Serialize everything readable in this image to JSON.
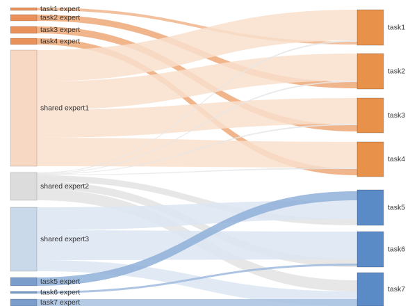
{
  "sources": [
    {
      "id": "t1e",
      "label": "task1 expert",
      "color": "#e8915a"
    },
    {
      "id": "t2e",
      "label": "task2 expert",
      "color": "#e8915a"
    },
    {
      "id": "t3e",
      "label": "task3 expert",
      "color": "#e8915a"
    },
    {
      "id": "t4e",
      "label": "task4 expert",
      "color": "#e8915a"
    },
    {
      "id": "se1",
      "label": "shared expert1",
      "color": "#f6d8c3"
    },
    {
      "id": "se2",
      "label": "shared expert2",
      "color": "#dcdcdc"
    },
    {
      "id": "se3",
      "label": "shared expert3",
      "color": "#c9d9ea"
    },
    {
      "id": "t5e",
      "label": "task5 expert",
      "color": "#7a9dcb"
    },
    {
      "id": "t6e",
      "label": "task6 expert",
      "color": "#7a9dcb"
    },
    {
      "id": "t7e",
      "label": "task7 expert",
      "color": "#7a9dcb"
    }
  ],
  "targets": [
    {
      "id": "task1",
      "label": "task1",
      "color": "#e8914b"
    },
    {
      "id": "task2",
      "label": "task2",
      "color": "#e8914b"
    },
    {
      "id": "task3",
      "label": "task3",
      "color": "#e8914b"
    },
    {
      "id": "task4",
      "label": "task4",
      "color": "#e8914b"
    },
    {
      "id": "task5",
      "label": "task5",
      "color": "#5b8bc6"
    },
    {
      "id": "task6",
      "label": "task6",
      "color": "#5b8bc6"
    },
    {
      "id": "task7",
      "label": "task7",
      "color": "#5b8bc6"
    }
  ],
  "flows": [
    {
      "source": "t1e",
      "target": "task1"
    },
    {
      "source": "t2e",
      "target": "task2"
    },
    {
      "source": "t3e",
      "target": "task3"
    },
    {
      "source": "t4e",
      "target": "task4"
    },
    {
      "source": "se1",
      "target": "task1"
    },
    {
      "source": "se1",
      "target": "task2"
    },
    {
      "source": "se1",
      "target": "task3"
    },
    {
      "source": "se1",
      "target": "task4"
    },
    {
      "source": "se2",
      "target": "task1"
    },
    {
      "source": "se2",
      "target": "task2"
    },
    {
      "source": "se2",
      "target": "task3"
    },
    {
      "source": "se2",
      "target": "task4"
    },
    {
      "source": "se2",
      "target": "task5"
    },
    {
      "source": "se2",
      "target": "task6"
    },
    {
      "source": "se2",
      "target": "task7"
    },
    {
      "source": "se3",
      "target": "task5"
    },
    {
      "source": "se3",
      "target": "task6"
    },
    {
      "source": "se3",
      "target": "task7"
    },
    {
      "source": "t5e",
      "target": "task5"
    },
    {
      "source": "t6e",
      "target": "task6"
    },
    {
      "source": "t7e",
      "target": "task7"
    }
  ]
}
